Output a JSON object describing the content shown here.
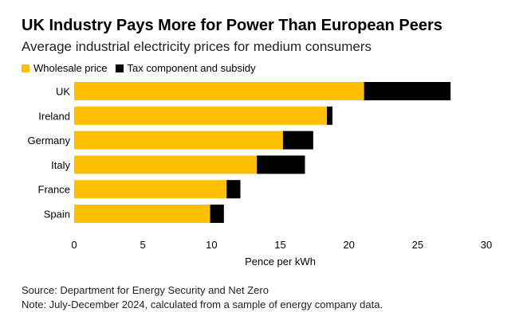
{
  "chart_data": {
    "type": "bar",
    "orientation": "horizontal",
    "stacked": true,
    "title": "UK Industry Pays More for Power Than European Peers",
    "subtitle": "Average industrial electricity prices for medium consumers",
    "categories": [
      "UK",
      "Ireland",
      "Germany",
      "Italy",
      "France",
      "Spain"
    ],
    "series": [
      {
        "name": "Wholesale price",
        "color": "#FFC000",
        "values": [
          21.1,
          18.4,
          15.2,
          13.3,
          11.1,
          9.9
        ]
      },
      {
        "name": "Tax component and subsidy",
        "color": "#000000",
        "values": [
          6.3,
          0.4,
          2.2,
          3.5,
          1.0,
          1.0
        ]
      }
    ],
    "xlabel": "Pence per kWh",
    "ylabel": "",
    "xlim": [
      0,
      30
    ],
    "xticks": [
      0,
      5,
      10,
      15,
      20,
      25,
      30
    ],
    "grid": false,
    "legend": "top-left"
  },
  "footer": {
    "source": "Source: Department for Energy Security and Net Zero",
    "note": "Note: July-December 2024, calculated from a sample of energy company data."
  }
}
